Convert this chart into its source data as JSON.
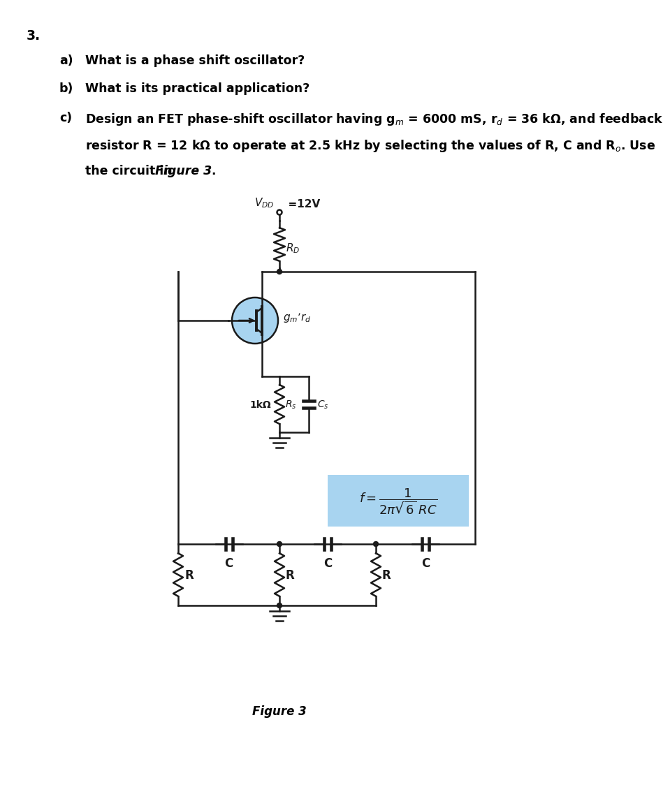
{
  "title_number": "3.",
  "question_a": "What is a phase shift oscillator?",
  "question_b": "What is its practical application?",
  "question_c1": "Design an FET phase-shift oscillator having g$_m$ = 6000 mS, r$_d$ = 36 kΩ, and feedback",
  "question_c2": "resistor R = 12 kΩ to operate at 2.5 kHz by selecting the values of R, C and R$_o$. Use",
  "question_c3a": "the circuit in ",
  "question_c3b": "Figure 3",
  "question_c3c": ".",
  "label_VDD": "V",
  "label_DD": "DD",
  "label_12V": "  =12V",
  "label_RD": "R$_D$",
  "label_gm_rd": "$g_m$’$r_d$",
  "label_1kohm": "1kΩ",
  "label_Rs": "R$_s$",
  "label_Cs": "C$_s$",
  "label_R": "R",
  "label_C": "C",
  "figure_label": "Figure 3",
  "bg_color": "#ffffff",
  "text_color": "#000000",
  "circuit_color": "#1a1a1a",
  "fet_circle_color": "#a8d4f0",
  "formula_box_color": "#a8d4f0"
}
